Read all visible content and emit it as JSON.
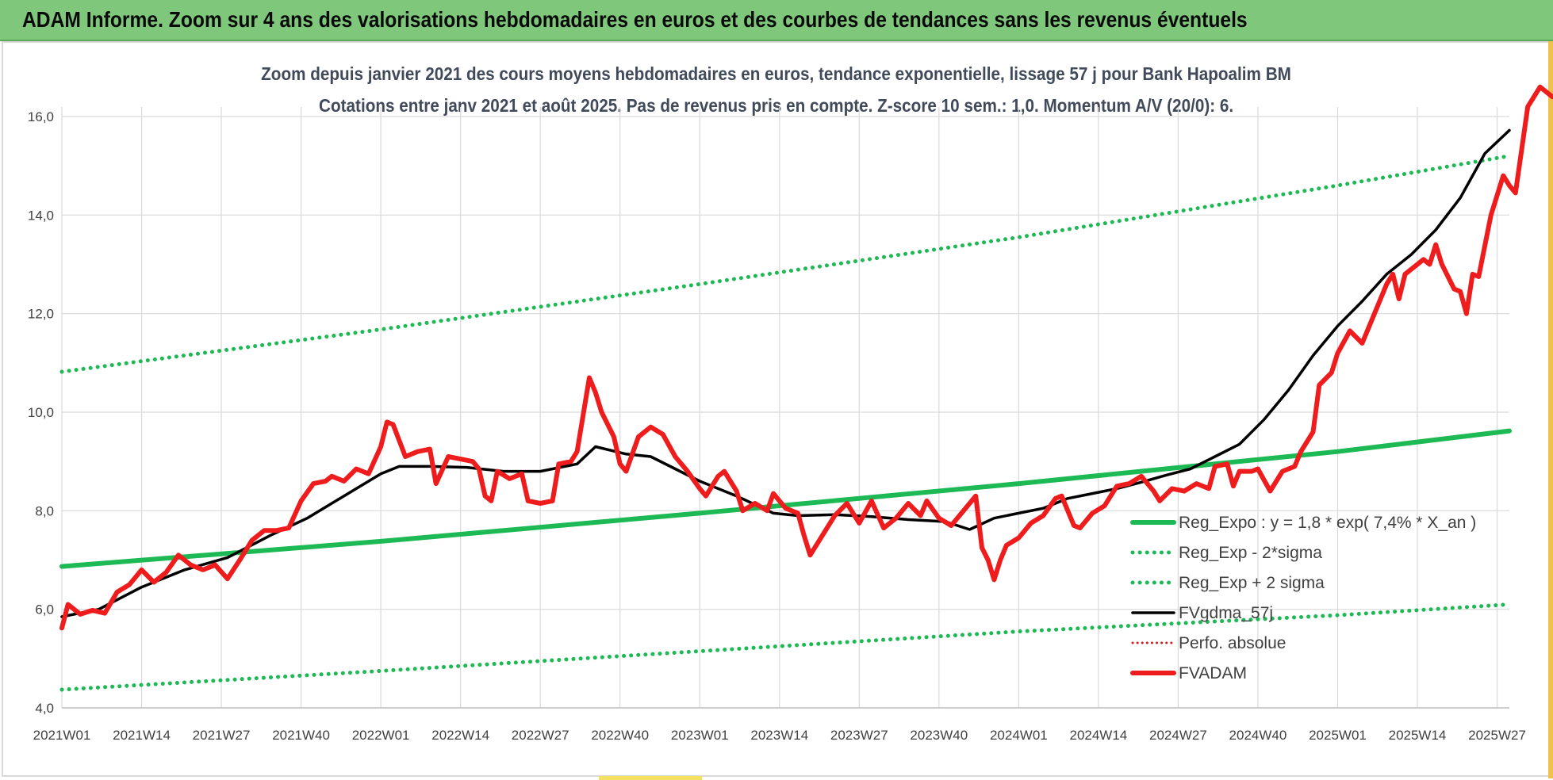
{
  "banner": {
    "title": "ADAM Informe. Zoom sur 4 ans des valorisations hebdomadaires en euros et des courbes de tendances sans les revenus éventuels"
  },
  "colors": {
    "banner_bg": "#7ec77b",
    "reg_expo": "#1db954",
    "fvgdma": "#000000",
    "perfo": "#d81e1e",
    "fvadam": "#ee1c1c"
  },
  "chart_data": {
    "type": "line",
    "title": "Zoom depuis janvier 2021 des cours moyens hebdomadaires en euros, tendance exponentielle, lissage 57 j pour Bank Hapoalim BM",
    "subtitle": "Cotations entre janv 2021 et août 2025.  Pas de revenus pris en compte. Z-score 10 sem.: 1,0. Momentum A/V (20/0): 6.",
    "xlabel": "",
    "ylabel": "",
    "ylim": [
      4.0,
      16.0
    ],
    "yticks": [
      "4,0",
      "6,0",
      "8,0",
      "10,0",
      "12,0",
      "14,0",
      "16,0"
    ],
    "x_labels": [
      "2021W01",
      "2021W14",
      "2021W27",
      "2021W40",
      "2022W01",
      "2022W14",
      "2022W27",
      "2022W40",
      "2023W01",
      "2023W14",
      "2023W27",
      "2023W40",
      "2024W01",
      "2024W14",
      "2024W27",
      "2024W40",
      "2025W01",
      "2025W14",
      "2025W27"
    ],
    "week_range": [
      0,
      236
    ],
    "grid": true,
    "legend_position": "right",
    "series": [
      {
        "name": "Reg_Expo : y = 1,8 * exp( 7,4% *  X_an )",
        "style": "solid",
        "points": [
          [
            0,
            6.87
          ],
          [
            52,
            7.38
          ],
          [
            104,
            7.95
          ],
          [
            156,
            8.55
          ],
          [
            208,
            9.2
          ],
          [
            236,
            9.62
          ]
        ]
      },
      {
        "name": "Reg_Exp - 2*sigma",
        "style": "dotted",
        "points": [
          [
            0,
            4.37
          ],
          [
            52,
            4.75
          ],
          [
            104,
            5.15
          ],
          [
            156,
            5.55
          ],
          [
            208,
            5.88
          ],
          [
            236,
            6.1
          ]
        ]
      },
      {
        "name": "Reg_Exp + 2 sigma",
        "style": "dotted",
        "points": [
          [
            0,
            10.82
          ],
          [
            52,
            11.68
          ],
          [
            104,
            12.6
          ],
          [
            156,
            13.55
          ],
          [
            208,
            14.6
          ],
          [
            236,
            15.2
          ]
        ]
      },
      {
        "name": "FVgdma_57j",
        "style": "solid",
        "points": [
          [
            0,
            5.85
          ],
          [
            6,
            6.0
          ],
          [
            13,
            6.45
          ],
          [
            20,
            6.8
          ],
          [
            27,
            7.05
          ],
          [
            34,
            7.5
          ],
          [
            40,
            7.85
          ],
          [
            46,
            8.3
          ],
          [
            52,
            8.75
          ],
          [
            55,
            8.9
          ],
          [
            60,
            8.9
          ],
          [
            66,
            8.88
          ],
          [
            72,
            8.8
          ],
          [
            78,
            8.8
          ],
          [
            84,
            8.95
          ],
          [
            87,
            9.3
          ],
          [
            92,
            9.15
          ],
          [
            96,
            9.1
          ],
          [
            100,
            8.85
          ],
          [
            104,
            8.6
          ],
          [
            110,
            8.3
          ],
          [
            116,
            7.95
          ],
          [
            120,
            7.9
          ],
          [
            126,
            7.92
          ],
          [
            132,
            7.88
          ],
          [
            138,
            7.82
          ],
          [
            144,
            7.78
          ],
          [
            148,
            7.62
          ],
          [
            152,
            7.85
          ],
          [
            156,
            7.95
          ],
          [
            160,
            8.05
          ],
          [
            164,
            8.25
          ],
          [
            168,
            8.35
          ],
          [
            172,
            8.45
          ],
          [
            176,
            8.58
          ],
          [
            180,
            8.72
          ],
          [
            184,
            8.85
          ],
          [
            188,
            9.1
          ],
          [
            192,
            9.35
          ],
          [
            196,
            9.85
          ],
          [
            200,
            10.45
          ],
          [
            204,
            11.15
          ],
          [
            208,
            11.75
          ],
          [
            212,
            12.25
          ],
          [
            216,
            12.8
          ],
          [
            220,
            13.2
          ],
          [
            224,
            13.7
          ],
          [
            228,
            14.35
          ],
          [
            232,
            15.25
          ],
          [
            236,
            15.72
          ]
        ]
      },
      {
        "name": "Perfo. absolue",
        "style": "dotted",
        "points": []
      },
      {
        "name": "FVADAM",
        "style": "solid",
        "points": [
          [
            0,
            5.62
          ],
          [
            1,
            6.1
          ],
          [
            3,
            5.9
          ],
          [
            5,
            5.98
          ],
          [
            7,
            5.92
          ],
          [
            9,
            6.35
          ],
          [
            11,
            6.5
          ],
          [
            13,
            6.8
          ],
          [
            15,
            6.55
          ],
          [
            17,
            6.75
          ],
          [
            19,
            7.1
          ],
          [
            21,
            6.9
          ],
          [
            23,
            6.8
          ],
          [
            25,
            6.9
          ],
          [
            27,
            6.62
          ],
          [
            29,
            7.0
          ],
          [
            31,
            7.4
          ],
          [
            33,
            7.6
          ],
          [
            35,
            7.6
          ],
          [
            37,
            7.65
          ],
          [
            39,
            8.2
          ],
          [
            41,
            8.55
          ],
          [
            43,
            8.6
          ],
          [
            44,
            8.7
          ],
          [
            46,
            8.6
          ],
          [
            48,
            8.85
          ],
          [
            50,
            8.75
          ],
          [
            52,
            9.3
          ],
          [
            53,
            9.8
          ],
          [
            54,
            9.75
          ],
          [
            56,
            9.1
          ],
          [
            58,
            9.2
          ],
          [
            60,
            9.25
          ],
          [
            61,
            8.55
          ],
          [
            63,
            9.1
          ],
          [
            65,
            9.05
          ],
          [
            67,
            9.0
          ],
          [
            68,
            8.85
          ],
          [
            69,
            8.3
          ],
          [
            70,
            8.2
          ],
          [
            71,
            8.8
          ],
          [
            73,
            8.65
          ],
          [
            75,
            8.75
          ],
          [
            76,
            8.2
          ],
          [
            78,
            8.15
          ],
          [
            80,
            8.2
          ],
          [
            81,
            8.95
          ],
          [
            83,
            9.0
          ],
          [
            84,
            9.2
          ],
          [
            85,
            9.95
          ],
          [
            86,
            10.7
          ],
          [
            87,
            10.4
          ],
          [
            88,
            10.0
          ],
          [
            90,
            9.5
          ],
          [
            91,
            8.95
          ],
          [
            92,
            8.8
          ],
          [
            94,
            9.5
          ],
          [
            96,
            9.7
          ],
          [
            98,
            9.55
          ],
          [
            100,
            9.1
          ],
          [
            102,
            8.8
          ],
          [
            104,
            8.45
          ],
          [
            105,
            8.3
          ],
          [
            107,
            8.7
          ],
          [
            108,
            8.8
          ],
          [
            110,
            8.4
          ],
          [
            111,
            8.0
          ],
          [
            113,
            8.15
          ],
          [
            115,
            8.0
          ],
          [
            116,
            8.35
          ],
          [
            118,
            8.05
          ],
          [
            120,
            7.95
          ],
          [
            121,
            7.5
          ],
          [
            122,
            7.1
          ],
          [
            124,
            7.5
          ],
          [
            126,
            7.9
          ],
          [
            128,
            8.15
          ],
          [
            130,
            7.75
          ],
          [
            132,
            8.2
          ],
          [
            134,
            7.65
          ],
          [
            136,
            7.85
          ],
          [
            138,
            8.15
          ],
          [
            140,
            7.9
          ],
          [
            141,
            8.2
          ],
          [
            143,
            7.85
          ],
          [
            145,
            7.7
          ],
          [
            147,
            8.0
          ],
          [
            149,
            8.3
          ],
          [
            150,
            7.25
          ],
          [
            151,
            7.0
          ],
          [
            152,
            6.6
          ],
          [
            153,
            7.0
          ],
          [
            154,
            7.3
          ],
          [
            156,
            7.45
          ],
          [
            158,
            7.75
          ],
          [
            160,
            7.9
          ],
          [
            162,
            8.25
          ],
          [
            163,
            8.3
          ],
          [
            165,
            7.7
          ],
          [
            166,
            7.65
          ],
          [
            168,
            7.95
          ],
          [
            170,
            8.1
          ],
          [
            172,
            8.5
          ],
          [
            174,
            8.55
          ],
          [
            176,
            8.7
          ],
          [
            178,
            8.4
          ],
          [
            179,
            8.2
          ],
          [
            181,
            8.45
          ],
          [
            183,
            8.4
          ],
          [
            185,
            8.55
          ],
          [
            187,
            8.45
          ],
          [
            188,
            8.9
          ],
          [
            190,
            8.95
          ],
          [
            191,
            8.5
          ],
          [
            192,
            8.8
          ],
          [
            194,
            8.8
          ],
          [
            195,
            8.85
          ],
          [
            197,
            8.4
          ],
          [
            199,
            8.8
          ],
          [
            201,
            8.9
          ],
          [
            202,
            9.2
          ],
          [
            204,
            9.6
          ],
          [
            205,
            10.55
          ],
          [
            207,
            10.8
          ],
          [
            208,
            11.2
          ],
          [
            210,
            11.65
          ],
          [
            212,
            11.4
          ],
          [
            214,
            12.0
          ],
          [
            216,
            12.6
          ],
          [
            217,
            12.8
          ],
          [
            218,
            12.3
          ],
          [
            219,
            12.8
          ],
          [
            221,
            13.0
          ],
          [
            222,
            13.1
          ],
          [
            223,
            13.0
          ],
          [
            224,
            13.4
          ],
          [
            225,
            13.0
          ],
          [
            227,
            12.5
          ],
          [
            228,
            12.45
          ],
          [
            229,
            12.0
          ],
          [
            230,
            12.8
          ],
          [
            231,
            12.75
          ],
          [
            233,
            14.0
          ],
          [
            235,
            14.8
          ],
          [
            236,
            14.6
          ],
          [
            237,
            14.45
          ],
          [
            239,
            16.2
          ],
          [
            241,
            16.6
          ],
          [
            243,
            16.4
          ],
          [
            244,
            16.4
          ]
        ]
      }
    ]
  }
}
